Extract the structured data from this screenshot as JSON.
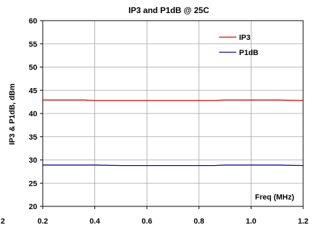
{
  "chart_data": {
    "type": "line",
    "title": "IP3 and P1dB @ 25C",
    "xlabel": "",
    "ylabel": "IP3 & P1dB, dBm",
    "annotation": "Freq (MHz)",
    "xlim": [
      0.2,
      1.2
    ],
    "ylim": [
      20,
      60
    ],
    "x_ticks": [
      0.2,
      0.4,
      0.6,
      0.8,
      1.0,
      1.2
    ],
    "x_tick_labels": [
      "0.2",
      "0.4",
      "0.6",
      "0.8",
      "1.0",
      "1.2"
    ],
    "left_clipped_label": "2",
    "y_ticks": [
      20,
      25,
      30,
      35,
      40,
      45,
      50,
      55,
      60
    ],
    "y_tick_labels": [
      "20",
      "25",
      "30",
      "35",
      "40",
      "45",
      "50",
      "55",
      "60"
    ],
    "grid": true,
    "legend_position": "top-right",
    "x": [
      0.2,
      0.3,
      0.36,
      0.4,
      0.5,
      0.6,
      0.7,
      0.8,
      0.86,
      0.9,
      1.0,
      1.1,
      1.2
    ],
    "series": [
      {
        "name": "IP3",
        "color": "#cc0000",
        "values": [
          42.9,
          42.9,
          42.9,
          42.8,
          42.8,
          42.8,
          42.8,
          42.8,
          42.8,
          42.9,
          42.9,
          42.9,
          42.8
        ]
      },
      {
        "name": "P1dB",
        "color": "#0000aa",
        "values": [
          28.9,
          28.9,
          28.9,
          28.9,
          28.8,
          28.8,
          28.8,
          28.8,
          28.8,
          28.9,
          28.9,
          28.9,
          28.8
        ]
      }
    ]
  }
}
